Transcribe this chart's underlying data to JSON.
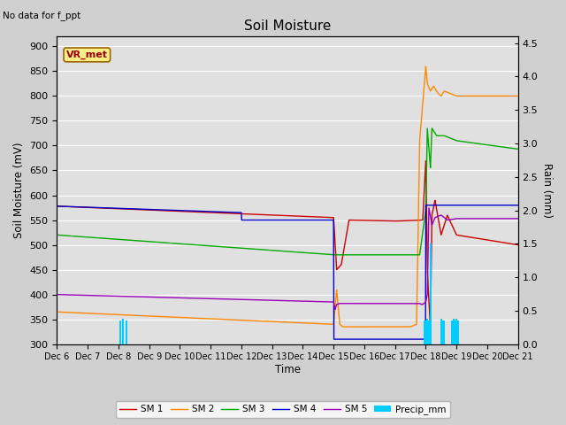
{
  "title": "Soil Moisture",
  "subtitle": "No data for f_ppt",
  "xlabel": "Time",
  "ylabel_left": "Soil Moisture (mV)",
  "ylabel_right": "Rain (mm)",
  "ylim_left": [
    300,
    920
  ],
  "ylim_right": [
    0.0,
    4.6
  ],
  "xtick_labels": [
    "Dec 6",
    "Dec 7",
    "Dec 8",
    "Dec 9",
    "Dec 10",
    "Dec 11",
    "Dec 12",
    "Dec 13",
    "Dec 14",
    "Dec 15",
    "Dec 16",
    "Dec 17",
    "Dec 18",
    "Dec 19",
    "Dec 20",
    "Dec 21"
  ],
  "bg_color": "#d0d0d0",
  "plot_bg_color": "#e0e0e0",
  "grid_color": "#ffffff",
  "sm1_color": "#cc0000",
  "sm2_color": "#ff8800",
  "sm3_color": "#00aa00",
  "sm4_color": "#0000cc",
  "sm5_color": "#9900bb",
  "precip_color": "#00ccff",
  "vr_box_facecolor": "#ffee88",
  "vr_box_edgecolor": "#996600"
}
